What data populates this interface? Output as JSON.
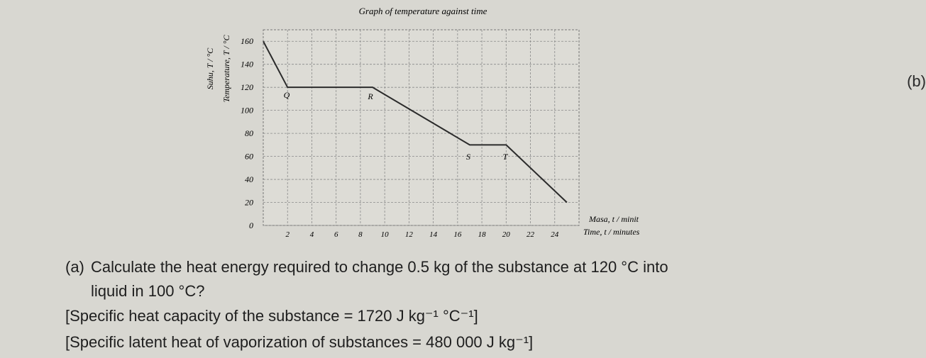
{
  "chart_data": {
    "type": "line",
    "title": "Graph of temperature against time",
    "y_label": [
      "Suhu, T / °C",
      "Temperature, T / °C"
    ],
    "x_label": [
      "Masa, t / minit",
      "Time, t / minutes"
    ],
    "x": [
      0,
      2,
      9,
      17,
      20,
      25
    ],
    "values": [
      160,
      120,
      120,
      70,
      70,
      20
    ],
    "color": "#2b2b2b",
    "xlim": [
      0,
      26
    ],
    "ylim": [
      0,
      170
    ],
    "xticks": [
      2,
      4,
      6,
      8,
      10,
      12,
      14,
      16,
      18,
      20,
      22,
      24
    ],
    "yticks": [
      0,
      20,
      40,
      60,
      80,
      100,
      120,
      140,
      160
    ],
    "annotations": [
      "Q",
      "R",
      "S",
      "T"
    ],
    "grid": true
  },
  "side_label": "(b)",
  "question": {
    "label": "(a)",
    "lines": [
      "Calculate the heat energy required to change 0.5 kg of the substance at 120 °C into",
      "liquid in 100 °C?"
    ],
    "given": [
      "[Specific heat capacity of the substance = 1720 J kg⁻¹ °C⁻¹]",
      "[Specific latent heat of vaporization of substances = 480 000 J kg⁻¹]"
    ]
  }
}
